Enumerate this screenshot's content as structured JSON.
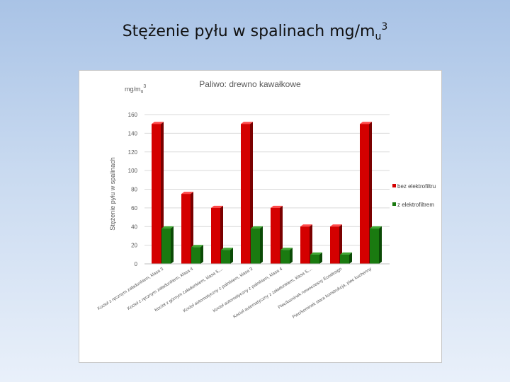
{
  "slide": {
    "title": "Stężenie pyłu w spalinach mg/m",
    "title_sub": "u",
    "title_sup": "3"
  },
  "chart_data": {
    "type": "bar",
    "title": "Paliwo: drewno kawałkowe",
    "unit_label": "mg/m",
    "unit_sub": "u",
    "unit_sup": "3",
    "ylabel": "Stężenie pyłu w spalinach",
    "xlabel": "",
    "ylim": [
      0,
      160
    ],
    "yticks": [
      0,
      20,
      40,
      60,
      80,
      100,
      120,
      140,
      160
    ],
    "grid": true,
    "legend_position": "right",
    "categories": [
      "Kocioł z ręcznym załadunkiem, klasa 3",
      "Kocioł z ręcznym załadunkiem, klasa 4",
      "Kocioł z górnym załadunkiem, klasa 5,...",
      "Kocioł automatyczny z palnikiem, klasa 3",
      "Kocioł automatyczny z palnikiem, klasa 4",
      "Kocioł automatyczny z załadunkiem, klasa 5,...",
      "Piec/kominek nowoczesny Ecodesign",
      "Piec/kominek stara konstrukcja, piec kuchenny"
    ],
    "series": [
      {
        "name": "bez elektrofiltru",
        "color": "#d40000",
        "values": [
          150,
          75,
          60,
          150,
          60,
          40,
          40,
          150
        ]
      },
      {
        "name": "z elektrofiltrem",
        "color": "#1a7a10",
        "values": [
          38,
          18,
          15,
          38,
          15,
          10,
          10,
          38
        ]
      }
    ]
  }
}
